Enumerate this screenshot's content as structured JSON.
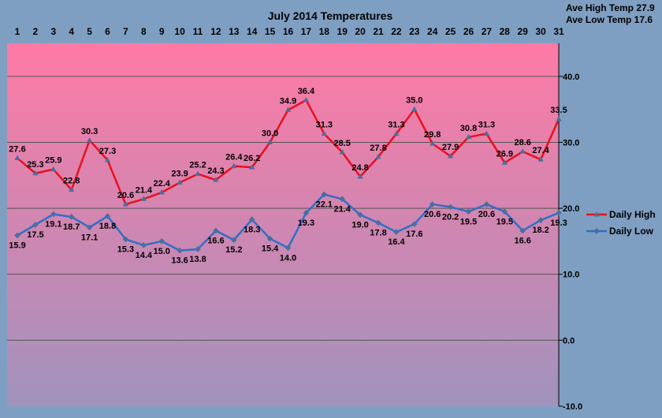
{
  "chart_data": {
    "type": "line",
    "title": "July 2014 Temperatures",
    "summary": [
      "Ave High Temp 27.9",
      "Ave Low Temp 17.6"
    ],
    "x": [
      1,
      2,
      3,
      4,
      5,
      6,
      7,
      8,
      9,
      10,
      11,
      12,
      13,
      14,
      15,
      16,
      17,
      18,
      19,
      20,
      21,
      22,
      23,
      24,
      25,
      26,
      27,
      28,
      29,
      30,
      31
    ],
    "x_tick_labels": [
      "1",
      "2",
      "3",
      "4",
      "5",
      "6",
      "7",
      "8",
      "9",
      "10",
      "11",
      "12",
      "13",
      "14",
      "15",
      "16",
      "17",
      "18",
      "19",
      "20",
      "21",
      "22",
      "23",
      "24",
      "25",
      "26",
      "27",
      "28",
      "29",
      "30",
      "31"
    ],
    "xlabel": "",
    "ylabel": "",
    "ylim": [
      -10,
      45
    ],
    "y_ticks": [
      40,
      30,
      20,
      10,
      0,
      -10
    ],
    "y_tick_labels": [
      "40.0",
      "30.0",
      "20.0",
      "10.0",
      "0.0",
      "-10.0"
    ],
    "grid": true,
    "legend_position": "right",
    "series": [
      {
        "name": "Daily High",
        "color": "#e8101e",
        "values": [
          27.6,
          25.3,
          25.9,
          22.8,
          30.3,
          27.3,
          20.6,
          21.4,
          22.4,
          23.9,
          25.2,
          24.3,
          26.4,
          26.2,
          30.0,
          34.9,
          36.4,
          31.3,
          28.5,
          24.8,
          27.8,
          31.3,
          35.0,
          29.8,
          27.9,
          30.8,
          31.3,
          26.9,
          28.6,
          27.4,
          33.5
        ],
        "labels": [
          "27.6",
          "25.3",
          "25.9",
          "22.8",
          "30.3",
          "27.3",
          "20.6",
          "21.4",
          "22.4",
          "23.9",
          "25.2",
          "24.3",
          "26.4",
          "26.2",
          "30.0",
          "34.9",
          "36.4",
          "31.3",
          "28.5",
          "24.8",
          "27.8",
          "31.3",
          "35.0",
          "29.8",
          "27.9",
          "30.8",
          "31.3",
          "26.9",
          "28.6",
          "27.4",
          "33.5"
        ]
      },
      {
        "name": "Daily Low",
        "color": "#2f6fc8",
        "values": [
          15.9,
          17.5,
          19.1,
          18.7,
          17.1,
          18.8,
          15.3,
          14.4,
          15.0,
          13.6,
          13.8,
          16.6,
          15.2,
          18.3,
          15.4,
          14.0,
          19.3,
          22.1,
          21.4,
          19.0,
          17.8,
          16.4,
          17.6,
          20.6,
          20.2,
          19.5,
          20.6,
          19.5,
          16.6,
          18.2,
          19.3
        ],
        "labels": [
          "15.9",
          "17.5",
          "19.1",
          "18.7",
          "17.1",
          "18.8",
          "15.3",
          "14.4",
          "15.0",
          "13.6",
          "13.8",
          "16.6",
          "15.2",
          "18.3",
          "15.4",
          "14.0",
          "19.3",
          "22.1",
          "21.4",
          "19.0",
          "17.8",
          "16.4",
          "17.6",
          "20.6",
          "20.2",
          "19.5",
          "20.6",
          "19.5",
          "16.6",
          "18.2",
          "19.3"
        ]
      }
    ],
    "colors": {
      "background": "#7f9fc2",
      "plot_top": "#ff7aa5",
      "plot_bottom": "#a093bd",
      "gridline": "#555555",
      "marker": "#4a6f9c"
    }
  }
}
